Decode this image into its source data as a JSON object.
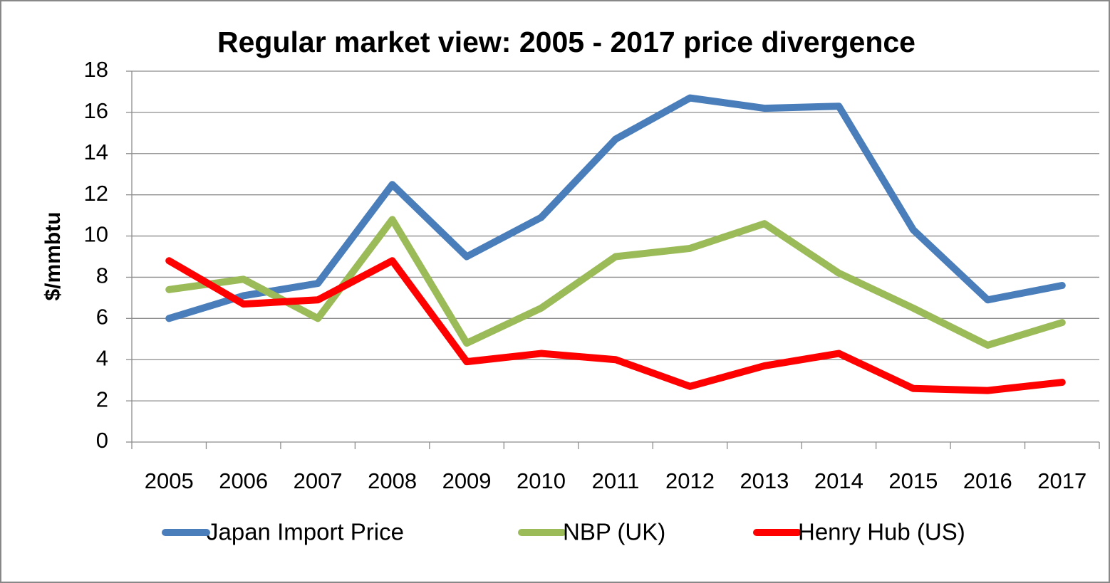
{
  "chart_data": {
    "type": "line",
    "title": "Regular market view: 2005 - 2017 price divergence",
    "y_label": "$/mmbtu",
    "categories": [
      "2005",
      "2006",
      "2007",
      "2008",
      "2009",
      "2010",
      "2011",
      "2012",
      "2013",
      "2014",
      "2015",
      "2016",
      "2017"
    ],
    "series": [
      {
        "name": "Japan Import Price",
        "color": "#4a7ebb",
        "values": [
          6.0,
          7.1,
          7.7,
          12.5,
          9.0,
          10.9,
          14.7,
          16.7,
          16.2,
          16.3,
          10.3,
          6.9,
          7.6
        ]
      },
      {
        "name": "NBP (UK)",
        "color": "#9bbb59",
        "values": [
          7.4,
          7.9,
          6.0,
          10.8,
          4.8,
          6.5,
          9.0,
          9.4,
          10.6,
          8.2,
          6.5,
          4.7,
          5.8
        ]
      },
      {
        "name": "Henry Hub (US)",
        "color": "#ff0000",
        "values": [
          8.8,
          6.7,
          6.9,
          8.8,
          3.9,
          4.3,
          4.0,
          2.7,
          3.7,
          4.3,
          2.6,
          2.5,
          2.9
        ]
      }
    ],
    "ylim": [
      0,
      18
    ],
    "yticks": [
      0,
      2,
      4,
      6,
      8,
      10,
      12,
      14,
      16,
      18
    ],
    "grid": true,
    "legend": "bottom"
  }
}
